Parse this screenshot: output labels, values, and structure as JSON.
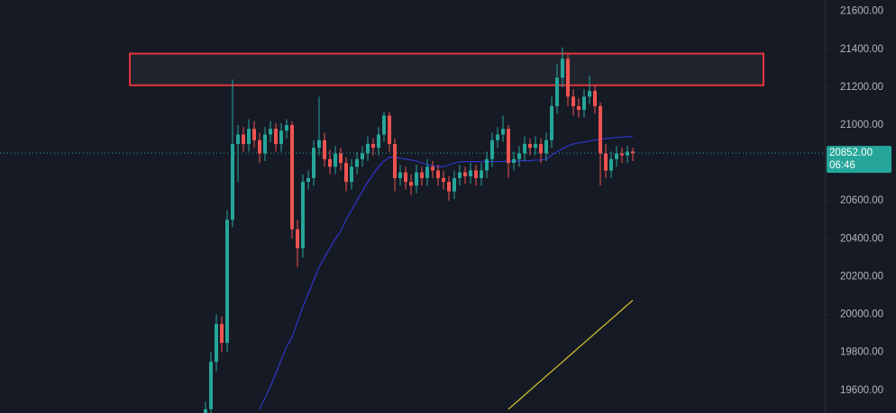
{
  "chart_data": {
    "type": "candlestick",
    "up_color": "#26a69a",
    "down_color": "#ef5350",
    "open": [
      19450,
      19500,
      19750,
      19950,
      19850,
      20500,
      20900,
      20950,
      20900,
      20980,
      20920,
      20850,
      20950,
      20980,
      20900,
      20970,
      21000,
      20450,
      20350,
      20700,
      20720,
      20880,
      20920,
      20820,
      20780,
      20850,
      20800,
      20700,
      20780,
      20820,
      20850,
      20900,
      20880,
      20950,
      21050,
      20900,
      20720,
      20750,
      20700,
      20680,
      20750,
      20720,
      20780,
      20760,
      20720,
      20700,
      20650,
      20720,
      20750,
      20730,
      20760,
      20720,
      20760,
      20820,
      20920,
      20950,
      20980,
      20800,
      20820,
      20850,
      20900,
      20880,
      20900,
      20850,
      20920,
      21100,
      21250,
      21350,
      21150,
      21100,
      21080,
      21150,
      21180,
      21100,
      20850,
      20760,
      20820,
      20850,
      20840,
      20860
    ],
    "high": [
      19540,
      19800,
      20000,
      19990,
      20550,
      21240,
      21000,
      20990,
      21030,
      21020,
      20960,
      20990,
      21020,
      21010,
      21010,
      21030,
      21020,
      20500,
      20740,
      20760,
      20920,
      21150,
      20960,
      20870,
      20890,
      20880,
      20830,
      20820,
      20860,
      20890,
      20940,
      20930,
      20990,
      21070,
      21070,
      20930,
      20790,
      20780,
      20740,
      20790,
      20780,
      20820,
      20810,
      20790,
      20760,
      20730,
      20760,
      20790,
      20780,
      20800,
      20790,
      20800,
      20860,
      20960,
      20990,
      21050,
      21000,
      20860,
      20890,
      20940,
      20930,
      20940,
      20930,
      20960,
      21150,
      21320,
      21410,
      21370,
      21190,
      21140,
      21190,
      21260,
      21210,
      21120,
      20900,
      20860,
      20890,
      20880,
      20890,
      20880
    ],
    "low": [
      19400,
      19460,
      19700,
      19800,
      19800,
      20460,
      20700,
      20860,
      20860,
      20880,
      20800,
      20810,
      20910,
      20860,
      20860,
      20930,
      20400,
      20250,
      20300,
      20660,
      20680,
      20840,
      20780,
      20740,
      20740,
      20760,
      20650,
      20660,
      20740,
      20780,
      20810,
      20840,
      20840,
      20910,
      20860,
      20650,
      20680,
      20660,
      20630,
      20640,
      20680,
      20680,
      20720,
      20680,
      20660,
      20600,
      20610,
      20680,
      20690,
      20690,
      20680,
      20680,
      20720,
      20780,
      20880,
      20910,
      20720,
      20760,
      20780,
      20810,
      20840,
      20840,
      20800,
      20810,
      20880,
      21060,
      21200,
      21100,
      21050,
      21040,
      21040,
      21110,
      21060,
      20680,
      20720,
      20720,
      20780,
      20800,
      20800,
      20810
    ],
    "close": [
      19500,
      19750,
      19950,
      19850,
      20500,
      20900,
      20950,
      20900,
      20980,
      20920,
      20850,
      20950,
      20980,
      20900,
      20970,
      21000,
      20450,
      20350,
      20700,
      20720,
      20880,
      20920,
      20820,
      20780,
      20850,
      20800,
      20700,
      20780,
      20820,
      20850,
      20900,
      20880,
      20950,
      21050,
      20900,
      20720,
      20750,
      20700,
      20680,
      20750,
      20720,
      20780,
      20760,
      20720,
      20700,
      20650,
      20720,
      20750,
      20730,
      20760,
      20720,
      20760,
      20820,
      20920,
      20950,
      20980,
      20800,
      20820,
      20850,
      20900,
      20880,
      20900,
      20850,
      20920,
      21100,
      21250,
      21350,
      21150,
      21100,
      21080,
      21150,
      21180,
      21100,
      20850,
      20760,
      20820,
      20850,
      20840,
      20860,
      20852
    ],
    "lines": [
      {
        "color": "#2f35c8",
        "values": [
          null,
          null,
          null,
          null,
          null,
          null,
          null,
          null,
          null,
          null,
          19500,
          19560,
          19620,
          19690,
          19760,
          19830,
          19880,
          19960,
          20040,
          20110,
          20180,
          20250,
          20300,
          20350,
          20400,
          20440,
          20500,
          20550,
          20600,
          20650,
          20700,
          20740,
          20780,
          20810,
          20830,
          20830,
          20825,
          20820,
          20815,
          20810,
          20800,
          20790,
          20785,
          20780,
          20780,
          20790,
          20800,
          20805,
          20807,
          20807,
          20807,
          20807,
          20807,
          20807,
          20807,
          20808,
          20808,
          20810,
          20810,
          20812,
          20812,
          20815,
          20815,
          20820,
          20840,
          20860,
          20875,
          20890,
          20900,
          20905,
          20910,
          20915,
          20920,
          20925,
          20928,
          20931,
          20934,
          20936,
          20938,
          20940
        ]
      },
      {
        "color": "#d6c92a",
        "values": [
          null,
          null,
          null,
          null,
          null,
          null,
          null,
          null,
          null,
          null,
          null,
          null,
          null,
          null,
          null,
          null,
          null,
          null,
          null,
          null,
          null,
          null,
          null,
          null,
          null,
          null,
          null,
          null,
          null,
          null,
          null,
          null,
          null,
          null,
          null,
          null,
          null,
          null,
          null,
          null,
          null,
          null,
          null,
          null,
          null,
          null,
          null,
          null,
          null,
          null,
          null,
          null,
          null,
          null,
          null,
          null,
          19500,
          19525,
          19550,
          19575,
          19600,
          19625,
          19650,
          19675,
          19700,
          19725,
          19750,
          19775,
          19800,
          19825,
          19850,
          19875,
          19900,
          19925,
          19950,
          19975,
          20000,
          20025,
          20050,
          20075
        ]
      }
    ],
    "zone": {
      "top": 21377,
      "bottom": 21210,
      "color": "#e5343d",
      "fill": "#1f242e"
    },
    "last_price": {
      "value": 20852,
      "label": "20852.00"
    },
    "countdown": "06:46",
    "price_color": "#26a69a",
    "ylim": [
      19480,
      21660
    ],
    "yticks": [
      {
        "value": 19600,
        "label": "19600.00"
      },
      {
        "value": 19800,
        "label": "19800.00"
      },
      {
        "value": 20000,
        "label": "20000.00"
      },
      {
        "value": 20200,
        "label": "20200.00"
      },
      {
        "value": 20400,
        "label": "20400.00"
      },
      {
        "value": 20600,
        "label": "20600.00"
      },
      {
        "value": 20800,
        "label": "20800.00"
      },
      {
        "value": 21000,
        "label": "21000.00"
      },
      {
        "value": 21200,
        "label": "21200.00"
      },
      {
        "value": 21400,
        "label": "21400.00"
      },
      {
        "value": 21600,
        "label": "21600.00"
      }
    ]
  }
}
